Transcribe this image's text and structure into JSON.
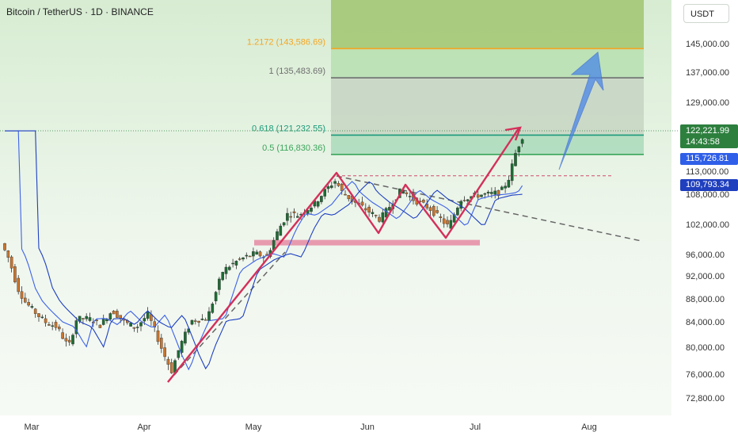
{
  "header": {
    "title": "Bitcoin / TetherUS · 1D · BINANCE",
    "currency_button": "USDT"
  },
  "chart_data": {
    "type": "candlestick",
    "y_ticks": [
      "145,000.00",
      "137,000.00",
      "129,000.00",
      "113,000.00",
      "108,000.00",
      "102,000.00",
      "96,000.00",
      "92,000.00",
      "88,000.00",
      "84,000.00",
      "80,000.00",
      "76,000.00",
      "72,800.00"
    ],
    "x_ticks": [
      "Mar",
      "Apr",
      "May",
      "Jun",
      "Jul",
      "Aug"
    ],
    "fib_levels": [
      {
        "label": "1.2172 (143,586.69)",
        "value": 143586.69,
        "color": "#f5a623"
      },
      {
        "label": "1 (135,483.69)",
        "value": 135483.69,
        "color": "#6f6f6f"
      },
      {
        "label": "0.618 (121,232.55)",
        "value": 121232.55,
        "color": "#1a9a7a"
      },
      {
        "label": "0.5 (116,830.36)",
        "value": 116830.36,
        "color": "#3aa55a"
      }
    ],
    "price_labels": {
      "last_price": "122,221.99",
      "countdown": "14:43:58",
      "ma_fast": "115,726.81",
      "ma_slow": "109,793.34"
    },
    "support_zone": [
      97800,
      98900
    ],
    "resistance_dashed": 112000,
    "colors": {
      "up": "#1e6b34",
      "down": "#c9742e",
      "ma_fast": "#3d62e8",
      "ma_slow": "#1d3fc2",
      "pattern": "#d42f5a",
      "arrow": "#4a86e8",
      "zone": "#e58aa2"
    }
  }
}
